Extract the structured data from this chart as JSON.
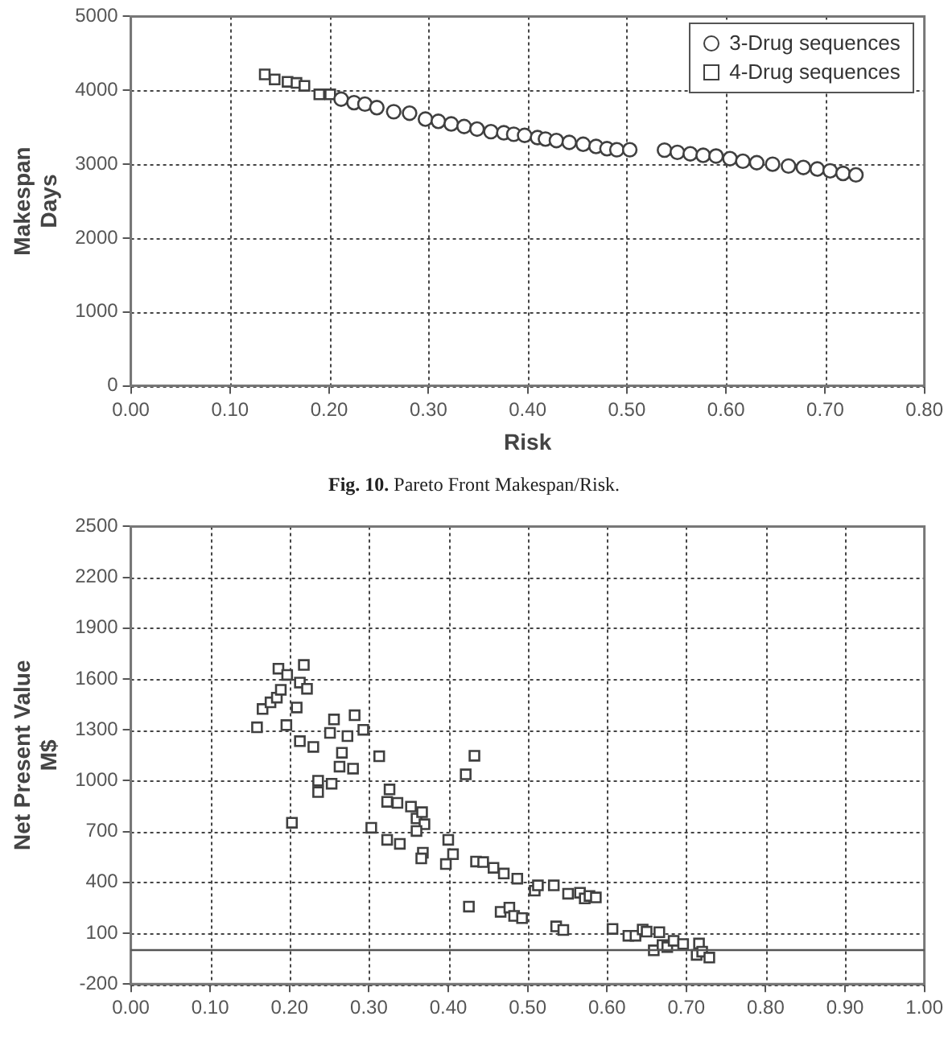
{
  "chart_data": [
    {
      "type": "scatter",
      "xlabel": "Risk",
      "ylabel": "Makespan\nDays",
      "xlim": [
        0,
        0.8
      ],
      "xticks": [
        {
          "value": 0,
          "label": "0.00"
        },
        {
          "value": 0.1,
          "label": "0.10"
        },
        {
          "value": 0.2,
          "label": "0.20"
        },
        {
          "value": 0.3,
          "label": "0.30"
        },
        {
          "value": 0.4,
          "label": "0.40"
        },
        {
          "value": 0.5,
          "label": "0.50"
        },
        {
          "value": 0.6,
          "label": "0.60"
        },
        {
          "value": 0.7,
          "label": "0.70"
        },
        {
          "value": 0.8,
          "label": "0.80"
        }
      ],
      "ylim": [
        0,
        5000
      ],
      "yticks": [
        0,
        1000,
        2000,
        3000,
        4000,
        5000
      ],
      "grid": true,
      "legend": "top right",
      "annotations": [
        "Fig. 10.  Pareto Front Makespan/Risk."
      ],
      "series": [
        {
          "name": "3-Drug sequences",
          "color": "#404040",
          "marker": "circle",
          "x": [
            0.212,
            0.225,
            0.236,
            0.248,
            0.265,
            0.281,
            0.297,
            0.31,
            0.323,
            0.336,
            0.349,
            0.363,
            0.376,
            0.386,
            0.397,
            0.41,
            0.418,
            0.429,
            0.442,
            0.456,
            0.469,
            0.48,
            0.49,
            0.503,
            0.538,
            0.551,
            0.564,
            0.577,
            0.59,
            0.604,
            0.617,
            0.631,
            0.647,
            0.663,
            0.678,
            0.692,
            0.705,
            0.718,
            0.731
          ],
          "values": [
            3880,
            3833,
            3813,
            3765,
            3710,
            3690,
            3610,
            3580,
            3545,
            3510,
            3475,
            3440,
            3425,
            3405,
            3390,
            3360,
            3340,
            3320,
            3295,
            3270,
            3240,
            3210,
            3195,
            3195,
            3190,
            3160,
            3140,
            3120,
            3110,
            3075,
            3040,
            3020,
            3000,
            2975,
            2955,
            2935,
            2910,
            2875,
            2855
          ]
        },
        {
          "name": "4-Drug sequences",
          "color": "#404040",
          "marker": "square",
          "x": [
            0.135,
            0.145,
            0.158,
            0.167,
            0.175,
            0.19,
            0.201
          ],
          "values": [
            4215,
            4147,
            4115,
            4100,
            4060,
            3945,
            3945
          ]
        }
      ]
    },
    {
      "type": "scatter",
      "ylabel": "Net Present Value\nM$",
      "xlim": [
        0,
        1
      ],
      "xticks": [
        {
          "value": 0,
          "label": "0.00"
        },
        {
          "value": 0.1,
          "label": "0.10"
        },
        {
          "value": 0.2,
          "label": "0.20"
        },
        {
          "value": 0.3,
          "label": "0.30"
        },
        {
          "value": 0.4,
          "label": "0.40"
        },
        {
          "value": 0.5,
          "label": "0.50"
        },
        {
          "value": 0.6,
          "label": "0.60"
        },
        {
          "value": 0.7,
          "label": "0.70"
        },
        {
          "value": 0.8,
          "label": "0.80"
        },
        {
          "value": 0.9,
          "label": "0.90"
        },
        {
          "value": 1,
          "label": "1.00"
        }
      ],
      "ylim": [
        -200,
        2500
      ],
      "yticks": [
        -200,
        100,
        400,
        700,
        1000,
        1300,
        1600,
        1900,
        2200,
        2500
      ],
      "grid": true,
      "legend": false,
      "marker": "square",
      "ref_lines": [
        {
          "axis": "y",
          "value": 0,
          "color": "#555555"
        }
      ],
      "series": [
        {
          "color": "#404040",
          "x": [
            0.159,
            0.166,
            0.176,
            0.184,
            0.189,
            0.186,
            0.197,
            0.196,
            0.209,
            0.203,
            0.213,
            0.218,
            0.222,
            0.213,
            0.23,
            0.236,
            0.236,
            0.253,
            0.251,
            0.256,
            0.273,
            0.266,
            0.263,
            0.28,
            0.282,
            0.293,
            0.313,
            0.303,
            0.326,
            0.323,
            0.336,
            0.353,
            0.36,
            0.367,
            0.37,
            0.36,
            0.323,
            0.339,
            0.368,
            0.366,
            0.4,
            0.406,
            0.397,
            0.422,
            0.433,
            0.426,
            0.435,
            0.444,
            0.457,
            0.47,
            0.487,
            0.466,
            0.477,
            0.483,
            0.493,
            0.509,
            0.513,
            0.533,
            0.551,
            0.536,
            0.545,
            0.566,
            0.572,
            0.578,
            0.586,
            0.607,
            0.627,
            0.636,
            0.645,
            0.65,
            0.666,
            0.659,
            0.67,
            0.676,
            0.684,
            0.696,
            0.716,
            0.713,
            0.72,
            0.729
          ],
          "values": [
            1315,
            1423,
            1462,
            1490,
            1536,
            1661,
            1624,
            1328,
            1432,
            752,
            1579,
            1683,
            1542,
            1233,
            1199,
            1000,
            933,
            982,
            1282,
            1361,
            1263,
            1165,
            1083,
            1071,
            1386,
            1300,
            1144,
            722,
            948,
            875,
            869,
            847,
            777,
            814,
            743,
            703,
            651,
            627,
            575,
            541,
            651,
            566,
            508,
            1037,
            1147,
            257,
            523,
            520,
            486,
            452,
            422,
            226,
            251,
            202,
            189,
            351,
            382,
            382,
            333,
            140,
            119,
            339,
            305,
            320,
            311,
            125,
            85,
            85,
            122,
            109,
            106,
            -1,
            30,
            18,
            55,
            36,
            39,
            -28,
            -9,
            -44
          ]
        }
      ]
    }
  ]
}
